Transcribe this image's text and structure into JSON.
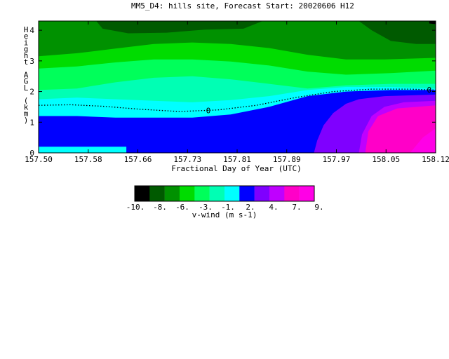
{
  "chart_data": {
    "type": "heatmap",
    "title": "MM5_D4: hills site,  Forecast Start: 20020606 H12",
    "xlabel": "Fractional Day of Year (UTC)",
    "ylabel": "Height AGL (km)",
    "x_ticks": [
      "157.50",
      "157.58",
      "157.66",
      "157.73",
      "157.81",
      "157.89",
      "157.97",
      "158.05",
      "158.12"
    ],
    "y_ticks": [
      "0",
      "1",
      "2",
      "3",
      "4"
    ],
    "xlim": [
      157.5,
      158.12
    ],
    "ylim": [
      0,
      4.3
    ],
    "contour_label": "0",
    "colorbar": {
      "title": "v-wind (m s-1)",
      "tick_labels": [
        "-10.",
        "-8.",
        "-6.",
        "-3.",
        "-1.",
        "2.",
        "4.",
        "7.",
        "9."
      ],
      "colors": [
        "#000000",
        "#005a00",
        "#009100",
        "#00dc00",
        "#00ff5a",
        "#00ffb4",
        "#00ffff",
        "#0000ff",
        "#7f00ff",
        "#bf00ff",
        "#ff00c8",
        "#ff00e6"
      ]
    },
    "bands": [
      {
        "name": "cyan-surface-layer",
        "color": "#00ffff",
        "y_base": [
          [
            157.5,
            0.02
          ],
          [
            158.12,
            0.02
          ]
        ],
        "y_top": [
          [
            157.5,
            0.18
          ],
          [
            157.63,
            0.18
          ],
          [
            157.635,
            0.0
          ],
          [
            158.12,
            0.0
          ]
        ]
      },
      {
        "name": "blue-lower-layer",
        "color": "#0000ff"
      },
      {
        "name": "violet-region",
        "color": "#7f00ff"
      },
      {
        "name": "pink-region",
        "color": "#ff00c8"
      },
      {
        "name": "magenta-core",
        "color": "#ff00e6"
      }
    ]
  }
}
